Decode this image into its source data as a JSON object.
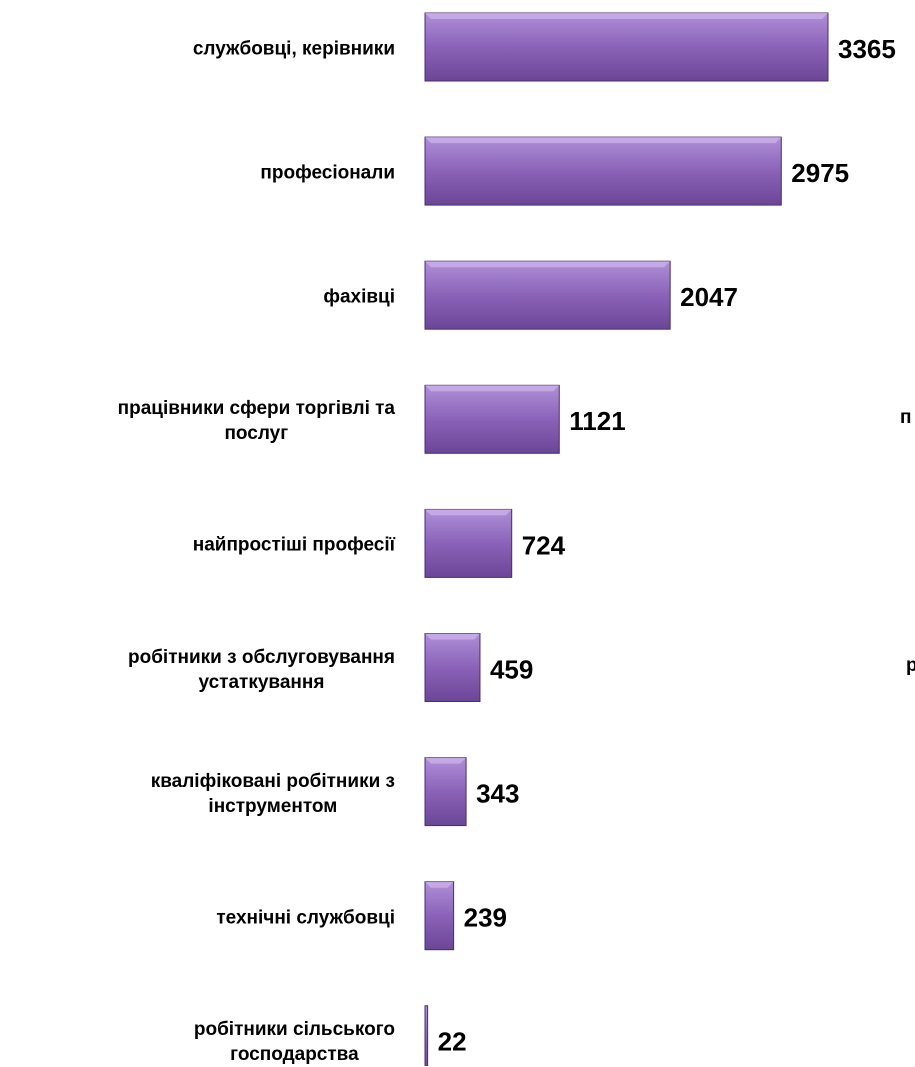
{
  "chart_data": {
    "type": "bar",
    "orientation": "horizontal",
    "categories": [
      "службовці, керівники",
      "професіонали",
      "фахівці",
      "працівники сфери торгівлі та\nпослуг",
      "найпростіші професії",
      "робітники з обслуговування\nустаткування",
      "кваліфіковані робітники з\nінструментом",
      "технічні службовці",
      "робітники сільського\nгосподарства"
    ],
    "values": [
      3365,
      2975,
      2047,
      1121,
      724,
      459,
      343,
      239,
      22
    ],
    "color": "#8a63b8",
    "annotations": [
      "п",
      "р"
    ]
  }
}
